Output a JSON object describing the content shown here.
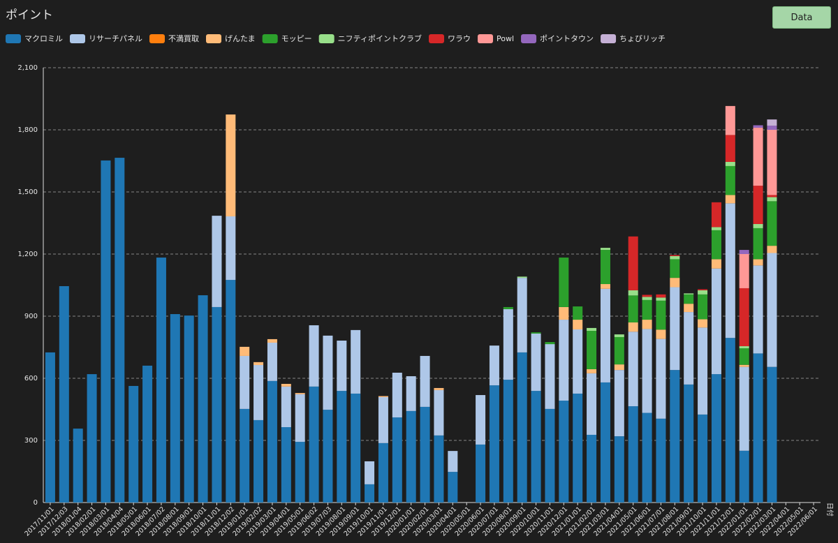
{
  "button": "Data",
  "chart_data": {
    "type": "stacked-bar",
    "title": "ポイント",
    "x_label": "日付",
    "categories": [
      "2017/11/01",
      "2017/12/03",
      "2018/01/04",
      "2018/02/01",
      "2018/03/01",
      "2018/04/04",
      "2018/05/01",
      "2018/06/01",
      "2018/07/02",
      "2018/08/01",
      "2018/09/01",
      "2018/10/01",
      "2018/11/01",
      "2018/12/02",
      "2019/01/01",
      "2019/02/02",
      "2019/03/01",
      "2019/04/01",
      "2019/05/01",
      "2019/06/02",
      "2019/07/03",
      "2019/08/01",
      "2019/09/01",
      "2019/10/01",
      "2019/11/01",
      "2019/12/01",
      "2020/01/01",
      "2020/02/01",
      "2020/03/01",
      "2020/04/01",
      "2020/05/01",
      "2020/06/01",
      "2020/07/01",
      "2020/08/01",
      "2020/09/01",
      "2020/10/01",
      "2020/11/01",
      "2020/12/01",
      "2021/01/01",
      "2021/02/01",
      "2021/03/01",
      "2021/04/01",
      "2021/05/01",
      "2021/06/01",
      "2021/07/01",
      "2021/08/01",
      "2021/09/01",
      "2021/10/01",
      "2021/11/01",
      "2021/12/01",
      "2022/01/01",
      "2022/02/01",
      "2022/03/01",
      "2022/04/01",
      "2022/05/01",
      "2022/06/01"
    ],
    "ylim": [
      0,
      2100
    ],
    "yticks": [
      0,
      300,
      600,
      900,
      {
        "value": 1200,
        "label": "1,200"
      },
      {
        "value": 1500,
        "label": "1,500"
      },
      {
        "value": 1800,
        "label": "1,800"
      },
      {
        "value": 2100,
        "label": "2,100"
      }
    ],
    "grid": true,
    "series": [
      {
        "name": "マクロミル",
        "color": "#1f77b4",
        "values": [
          725,
          1045,
          357,
          620,
          1652,
          1665,
          563,
          661,
          1183,
          910,
          903,
          1001,
          944,
          1075,
          452,
          398,
          587,
          364,
          293,
          560,
          448,
          539,
          526,
          88,
          287,
          411,
          442,
          462,
          324,
          148,
          null,
          280,
          566,
          593,
          725,
          539,
          452,
          492,
          526,
          327,
          580,
          320,
          465,
          433,
          405,
          640,
          570,
          425,
          620,
          795,
          250,
          720,
          655,
          null,
          null,
          null
        ]
      },
      {
        "name": "リサーチパネル",
        "color": "#aec7e8",
        "values": [
          null,
          null,
          null,
          null,
          null,
          null,
          null,
          null,
          null,
          null,
          null,
          null,
          441,
          307,
          256,
          266,
          185,
          196,
          230,
          296,
          358,
          243,
          307,
          111,
          222,
          216,
          168,
          246,
          219,
          101,
          null,
          239,
          192,
          341,
          360,
          277,
          313,
          391,
          310,
          297,
          452,
          320,
          360,
          405,
          385,
          400,
          350,
          420,
          510,
          650,
          405,
          425,
          550,
          null,
          null,
          null
        ]
      },
      {
        "name": "不満買取",
        "color": "#ff7f0e",
        "values": [
          null,
          null,
          null,
          null,
          null,
          null,
          null,
          null,
          null,
          null,
          null,
          null,
          null,
          null,
          null,
          null,
          null,
          null,
          null,
          null,
          null,
          null,
          null,
          null,
          null,
          null,
          null,
          null,
          null,
          null,
          null,
          null,
          null,
          null,
          null,
          null,
          null,
          null,
          null,
          null,
          null,
          null,
          null,
          null,
          null,
          null,
          null,
          null,
          null,
          null,
          null,
          null,
          null,
          null,
          null,
          null
        ]
      },
      {
        "name": "げんたま",
        "color": "#ffbb78",
        "values": [
          null,
          null,
          null,
          null,
          null,
          null,
          null,
          null,
          null,
          null,
          null,
          null,
          null,
          492,
          44,
          14,
          17,
          13,
          6,
          null,
          null,
          null,
          null,
          null,
          5,
          null,
          null,
          null,
          10,
          null,
          null,
          null,
          null,
          null,
          null,
          null,
          null,
          61,
          47,
          20,
          23,
          27,
          45,
          45,
          45,
          45,
          40,
          40,
          45,
          40,
          10,
          30,
          35,
          null,
          null,
          null
        ]
      },
      {
        "name": "モッピー",
        "color": "#2ca02c",
        "values": [
          null,
          null,
          null,
          null,
          null,
          null,
          null,
          null,
          null,
          null,
          null,
          null,
          null,
          null,
          null,
          null,
          null,
          null,
          null,
          null,
          null,
          null,
          null,
          null,
          null,
          null,
          null,
          null,
          null,
          null,
          null,
          null,
          null,
          10,
          null,
          6,
          10,
          239,
          64,
          185,
          165,
          132,
          130,
          95,
          140,
          90,
          45,
          120,
          140,
          140,
          80,
          150,
          215,
          null,
          null,
          null
        ]
      },
      {
        "name": "ニフティポイントクラブ",
        "color": "#98df8a",
        "values": [
          null,
          null,
          null,
          null,
          null,
          null,
          null,
          null,
          null,
          null,
          null,
          null,
          null,
          null,
          null,
          null,
          null,
          null,
          null,
          null,
          null,
          null,
          null,
          null,
          null,
          null,
          null,
          null,
          null,
          null,
          null,
          null,
          null,
          null,
          6,
          null,
          null,
          null,
          null,
          14,
          10,
          13,
          25,
          15,
          15,
          15,
          5,
          20,
          15,
          20,
          10,
          20,
          20,
          null,
          null,
          null
        ]
      },
      {
        "name": "ワラウ",
        "color": "#d62728",
        "values": [
          null,
          null,
          null,
          null,
          null,
          null,
          null,
          null,
          null,
          null,
          null,
          null,
          null,
          null,
          null,
          null,
          null,
          null,
          null,
          null,
          null,
          null,
          null,
          null,
          null,
          null,
          null,
          null,
          null,
          null,
          null,
          null,
          null,
          null,
          null,
          null,
          null,
          null,
          null,
          null,
          null,
          null,
          260,
          10,
          15,
          5,
          null,
          5,
          120,
          130,
          280,
          185,
          10,
          null,
          null,
          null
        ]
      },
      {
        "name": "Powl",
        "color": "#ff9896",
        "values": [
          null,
          null,
          null,
          null,
          null,
          null,
          null,
          null,
          null,
          null,
          null,
          null,
          null,
          null,
          null,
          null,
          null,
          null,
          null,
          null,
          null,
          null,
          null,
          null,
          null,
          null,
          null,
          null,
          null,
          null,
          null,
          null,
          null,
          null,
          null,
          null,
          null,
          null,
          null,
          null,
          null,
          null,
          null,
          null,
          null,
          null,
          null,
          null,
          null,
          140,
          165,
          280,
          315,
          null,
          null,
          null
        ]
      },
      {
        "name": "ポイントタウン",
        "color": "#9467bd",
        "values": [
          null,
          null,
          null,
          null,
          null,
          null,
          null,
          null,
          null,
          null,
          null,
          null,
          null,
          null,
          null,
          null,
          null,
          null,
          null,
          null,
          null,
          null,
          null,
          null,
          null,
          null,
          null,
          null,
          null,
          null,
          null,
          null,
          null,
          null,
          null,
          null,
          null,
          null,
          null,
          null,
          null,
          null,
          null,
          null,
          null,
          null,
          null,
          null,
          null,
          null,
          20,
          12,
          20,
          null,
          null,
          null
        ]
      },
      {
        "name": "ちょびリッチ",
        "color": "#c5b0d5",
        "values": [
          null,
          null,
          null,
          null,
          null,
          null,
          null,
          null,
          null,
          null,
          null,
          null,
          null,
          null,
          null,
          null,
          null,
          null,
          null,
          null,
          null,
          null,
          null,
          null,
          null,
          null,
          null,
          null,
          null,
          null,
          null,
          null,
          null,
          null,
          null,
          null,
          null,
          null,
          null,
          null,
          null,
          null,
          null,
          null,
          null,
          null,
          null,
          null,
          null,
          null,
          null,
          null,
          30,
          null,
          null,
          null
        ]
      }
    ]
  }
}
